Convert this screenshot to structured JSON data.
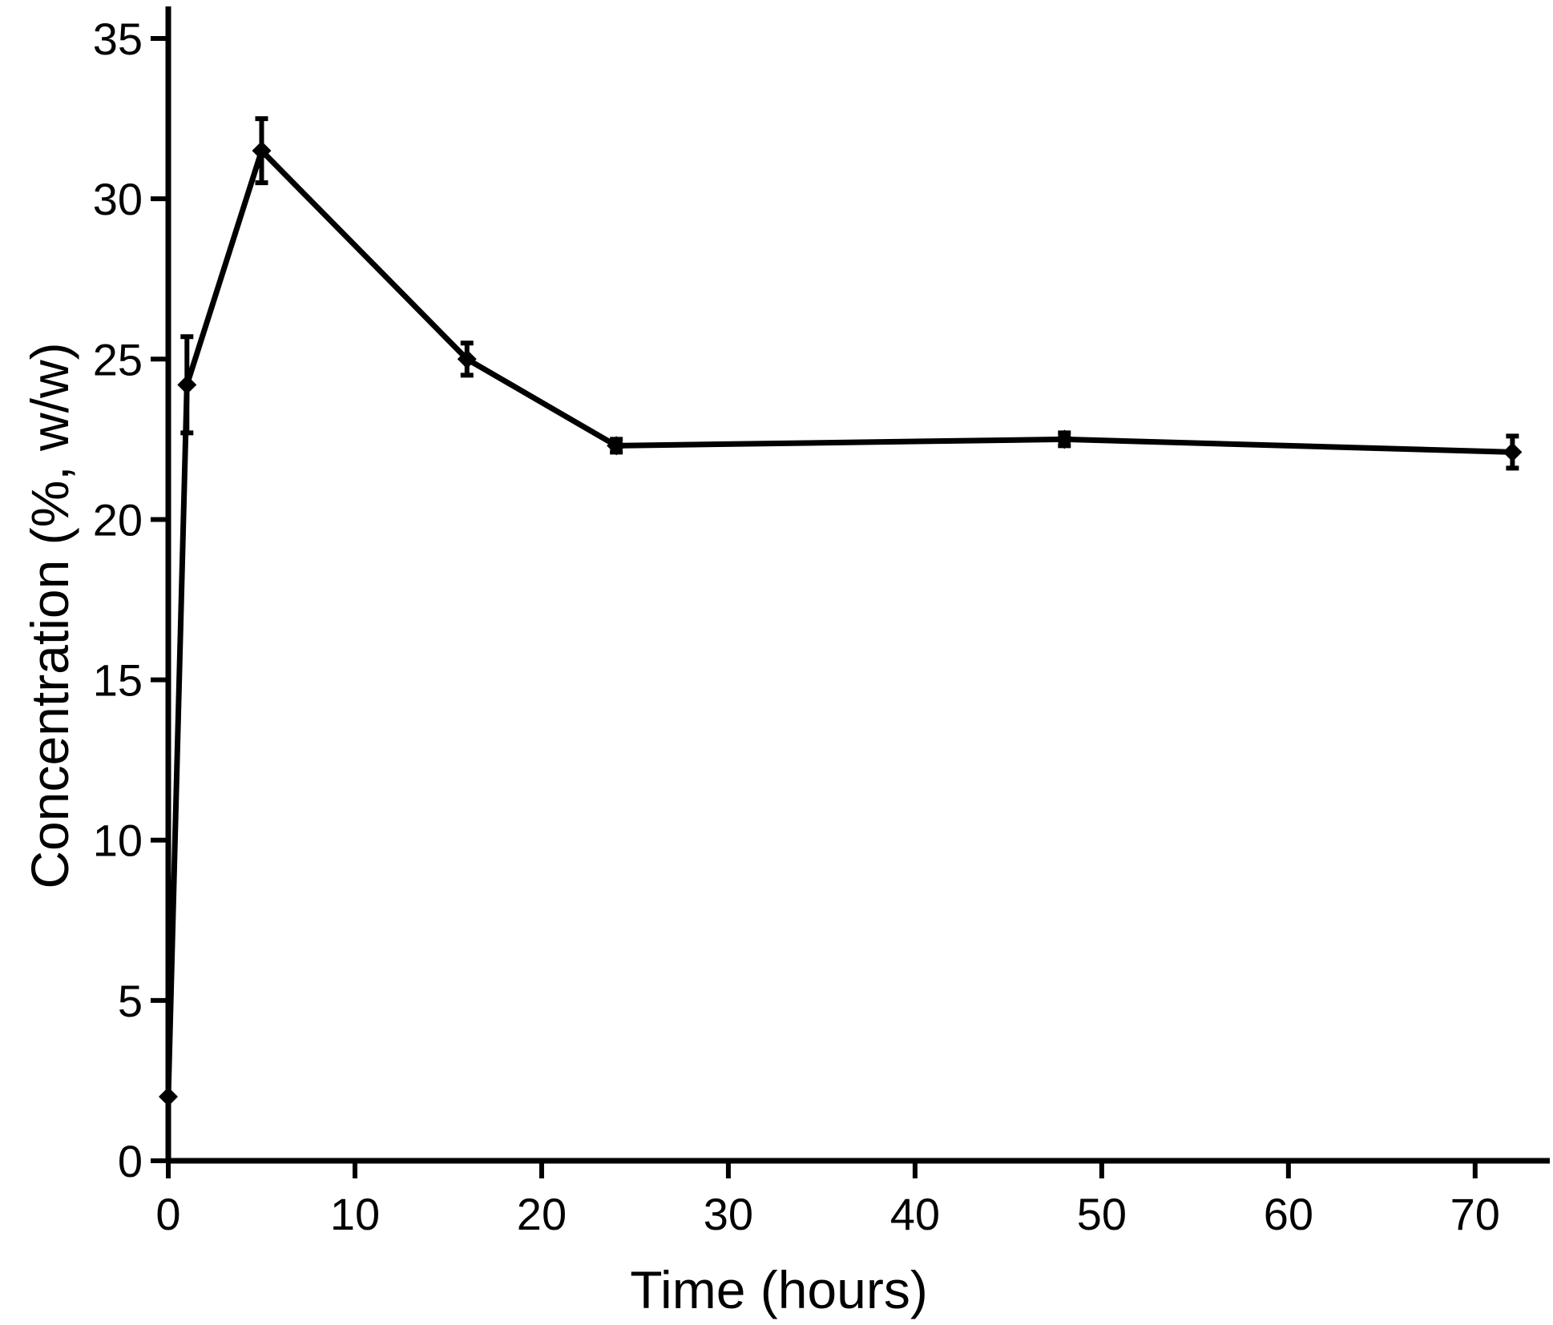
{
  "chart_data": {
    "type": "line",
    "title": "",
    "xlabel": "Time (hours)",
    "ylabel": "Concentration (%, w/w)",
    "xlim": [
      0,
      74
    ],
    "ylim": [
      0,
      36
    ],
    "xticks": [
      0,
      10,
      20,
      30,
      40,
      50,
      60,
      70
    ],
    "yticks": [
      0,
      5,
      10,
      15,
      20,
      25,
      30,
      35
    ],
    "grid": false,
    "legend": "none",
    "line_color": "#000000",
    "series": [
      {
        "x": [
          0,
          1,
          5,
          16,
          24,
          48,
          72
        ],
        "y": [
          2.0,
          24.2,
          31.5,
          25.0,
          22.3,
          22.5,
          22.1
        ],
        "err": [
          0,
          1.5,
          1.0,
          0.5,
          0.2,
          0.2,
          0.5
        ]
      }
    ]
  }
}
